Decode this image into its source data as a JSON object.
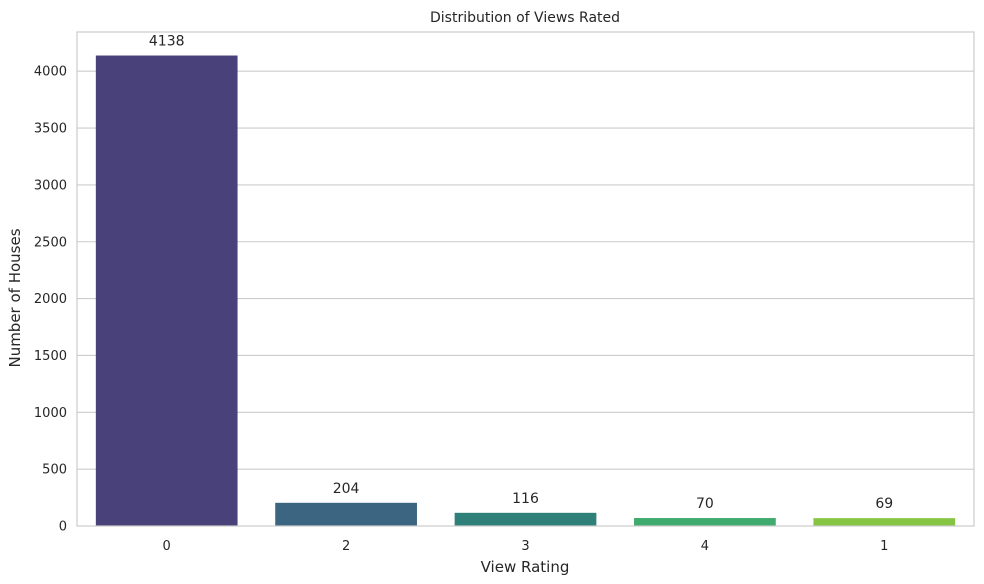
{
  "chart_data": {
    "type": "bar",
    "title": "Distribution of Views Rated",
    "xlabel": "View Rating",
    "ylabel": "Number of Houses",
    "categories": [
      "0",
      "2",
      "3",
      "4",
      "1"
    ],
    "values": [
      4138,
      204,
      116,
      70,
      69
    ],
    "data_labels": [
      "4138",
      "204",
      "116",
      "70",
      "69"
    ],
    "colors": [
      "#48417a",
      "#3b6581",
      "#2e8079",
      "#40ab6e",
      "#86c443"
    ],
    "yticks": [
      0,
      500,
      1000,
      1500,
      2000,
      2500,
      3000,
      3500,
      4000
    ],
    "ylim": [
      0,
      4344.9
    ],
    "grid": true,
    "legend": false
  }
}
